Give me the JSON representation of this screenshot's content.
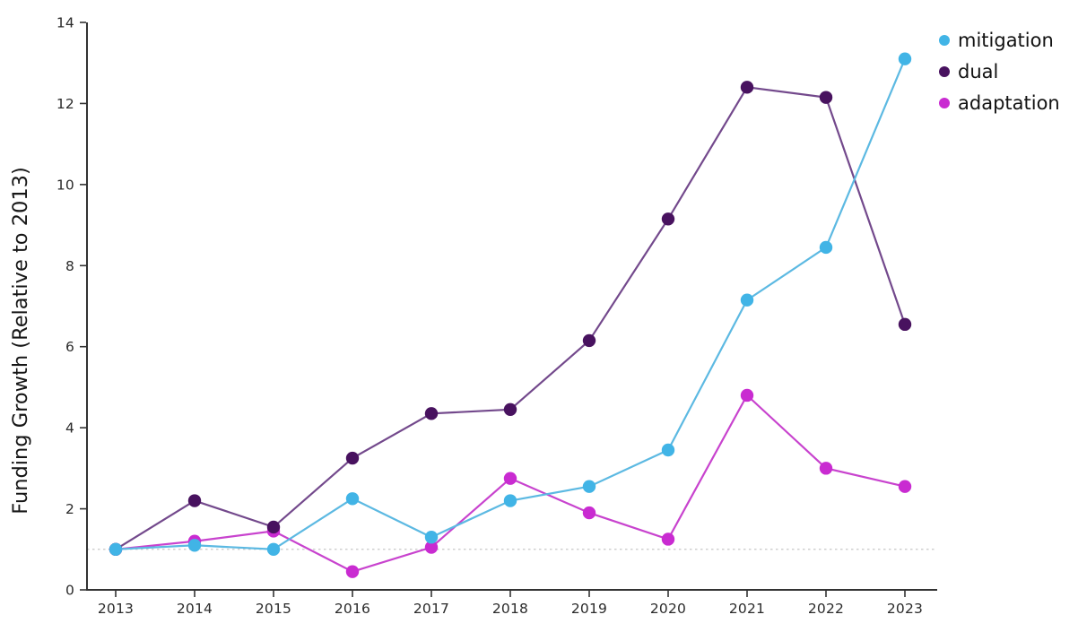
{
  "chart_data": {
    "type": "line",
    "title": "",
    "xlabel": "",
    "ylabel": "Funding Growth (Relative to 2013)",
    "x": [
      2013,
      2014,
      2015,
      2016,
      2017,
      2018,
      2019,
      2020,
      2021,
      2022,
      2023
    ],
    "ylim": [
      0,
      14
    ],
    "yticks": [
      0,
      2,
      4,
      6,
      8,
      10,
      12,
      14
    ],
    "grid": false,
    "legend_position": "top-right",
    "reference_line": {
      "y": 1,
      "style": "dotted",
      "color": "#c6c6c6"
    },
    "series": [
      {
        "name": "mitigation",
        "marker_color": "#41b4e6",
        "line_color": "#5cb9e2",
        "values": [
          1.0,
          1.1,
          1.0,
          2.25,
          1.3,
          2.2,
          2.55,
          3.45,
          7.15,
          8.45,
          13.1
        ]
      },
      {
        "name": "dual",
        "marker_color": "#48125f",
        "line_color": "#73498c",
        "values": [
          1.0,
          2.2,
          1.55,
          3.25,
          4.35,
          4.45,
          6.15,
          9.15,
          12.4,
          12.15,
          6.55
        ]
      },
      {
        "name": "adaptation",
        "marker_color": "#c92bd1",
        "line_color": "#c843ce",
        "values": [
          1.0,
          1.2,
          1.45,
          0.45,
          1.05,
          2.75,
          1.9,
          1.25,
          4.8,
          3.0,
          2.55
        ]
      }
    ]
  }
}
